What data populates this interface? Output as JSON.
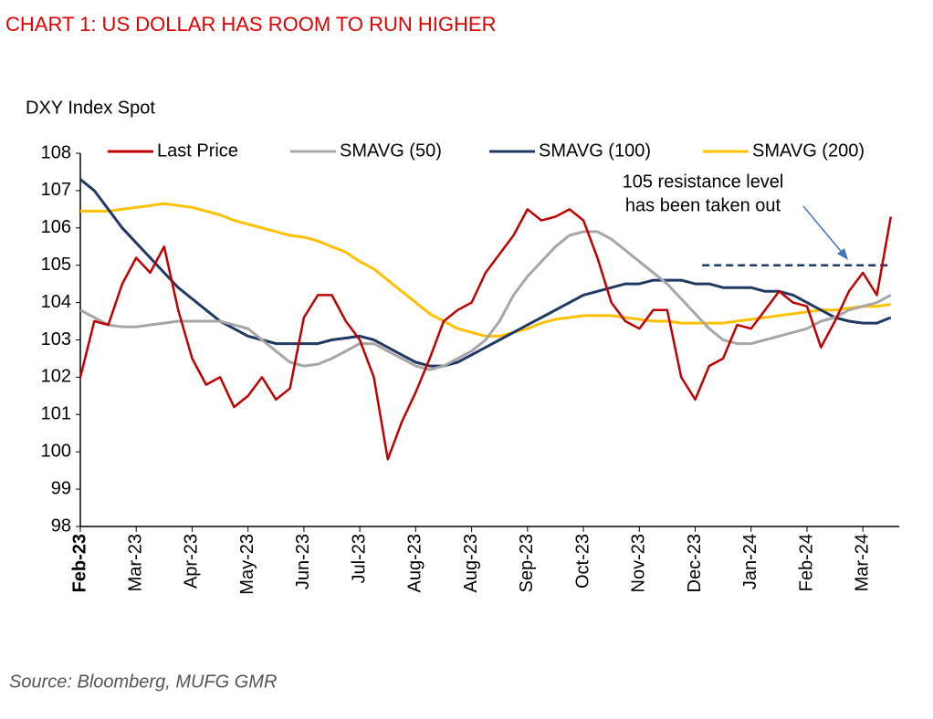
{
  "chart_data": {
    "type": "line",
    "title": "CHART 1: US DOLLAR HAS ROOM TO RUN HIGHER",
    "y_label": "DXY Index Spot",
    "source": "Source: Bloomberg, MUFG GMR",
    "annotation": [
      "105 resistance level",
      "has been taken out"
    ],
    "resistance_line": {
      "y": 105,
      "x": [
        44.5,
        58
      ],
      "color": "#1f3864"
    },
    "xlim": [
      0,
      58.6
    ],
    "xticks": [
      {
        "value": 0,
        "label": "Feb-23"
      },
      {
        "value": 4,
        "label": "Mar-23"
      },
      {
        "value": 8,
        "label": "Apr-23"
      },
      {
        "value": 12,
        "label": "May-23"
      },
      {
        "value": 16,
        "label": "Jun-23"
      },
      {
        "value": 20,
        "label": "Jul-23"
      },
      {
        "value": 24,
        "label": "Aug-23"
      },
      {
        "value": 28,
        "label": "Aug-23"
      },
      {
        "value": 32,
        "label": "Sep-23"
      },
      {
        "value": 36,
        "label": "Oct-23"
      },
      {
        "value": 40,
        "label": "Nov-23"
      },
      {
        "value": 44,
        "label": "Dec-23"
      },
      {
        "value": 48,
        "label": "Jan-24"
      },
      {
        "value": 52,
        "label": "Feb-24"
      },
      {
        "value": 56,
        "label": "Mar-24"
      }
    ],
    "ylim": [
      98,
      108
    ],
    "yticks": [
      98,
      99,
      100,
      101,
      102,
      103,
      104,
      105,
      106,
      107,
      108
    ],
    "series": [
      {
        "name": "Last Price",
        "color": "#c00000",
        "values": [
          102.0,
          103.5,
          103.4,
          104.5,
          105.2,
          104.8,
          105.5,
          103.8,
          102.5,
          101.8,
          102.0,
          101.2,
          101.5,
          102.0,
          101.4,
          101.7,
          103.6,
          104.2,
          104.2,
          103.5,
          103.0,
          102.0,
          99.8,
          100.8,
          101.6,
          102.5,
          103.5,
          103.8,
          104.0,
          104.8,
          105.3,
          105.8,
          106.5,
          106.2,
          106.3,
          106.5,
          106.2,
          105.2,
          104.0,
          103.5,
          103.3,
          103.8,
          103.8,
          102.0,
          101.4,
          102.3,
          102.5,
          103.4,
          103.3,
          103.8,
          104.3,
          104.0,
          103.9,
          102.8,
          103.5,
          104.3,
          104.8,
          104.2,
          106.3
        ]
      },
      {
        "name": "SMAVG (50)",
        "color": "#a6a6a6",
        "values": [
          103.8,
          103.6,
          103.4,
          103.35,
          103.35,
          103.4,
          103.45,
          103.5,
          103.5,
          103.5,
          103.5,
          103.4,
          103.3,
          103.0,
          102.7,
          102.4,
          102.3,
          102.35,
          102.5,
          102.7,
          102.9,
          102.9,
          102.7,
          102.5,
          102.3,
          102.2,
          102.3,
          102.5,
          102.7,
          103.0,
          103.5,
          104.2,
          104.7,
          105.1,
          105.5,
          105.8,
          105.9,
          105.9,
          105.7,
          105.4,
          105.1,
          104.8,
          104.5,
          104.1,
          103.7,
          103.3,
          103.0,
          102.9,
          102.9,
          103.0,
          103.1,
          103.2,
          103.3,
          103.5,
          103.6,
          103.8,
          103.9,
          104.0,
          104.2
        ]
      },
      {
        "name": "SMAVG (100)",
        "color": "#1f3864",
        "values": [
          107.3,
          107.0,
          106.5,
          106.0,
          105.6,
          105.2,
          104.8,
          104.4,
          104.1,
          103.8,
          103.5,
          103.3,
          103.1,
          103.0,
          102.9,
          102.9,
          102.9,
          102.9,
          103.0,
          103.05,
          103.1,
          103.0,
          102.8,
          102.6,
          102.4,
          102.3,
          102.3,
          102.4,
          102.6,
          102.8,
          103.0,
          103.2,
          103.4,
          103.6,
          103.8,
          104.0,
          104.2,
          104.3,
          104.4,
          104.5,
          104.5,
          104.6,
          104.6,
          104.6,
          104.5,
          104.5,
          104.4,
          104.4,
          104.4,
          104.3,
          104.3,
          104.2,
          104.0,
          103.8,
          103.6,
          103.5,
          103.45,
          103.45,
          103.6
        ]
      },
      {
        "name": "SMAVG (200)",
        "color": "#ffc000",
        "values": [
          106.45,
          106.45,
          106.45,
          106.5,
          106.55,
          106.6,
          106.65,
          106.6,
          106.55,
          106.45,
          106.35,
          106.2,
          106.1,
          106.0,
          105.9,
          105.8,
          105.75,
          105.65,
          105.5,
          105.35,
          105.1,
          104.9,
          104.6,
          104.3,
          104.0,
          103.7,
          103.5,
          103.3,
          103.2,
          103.1,
          103.1,
          103.2,
          103.3,
          103.45,
          103.55,
          103.6,
          103.65,
          103.65,
          103.65,
          103.6,
          103.55,
          103.5,
          103.5,
          103.45,
          103.45,
          103.45,
          103.45,
          103.5,
          103.55,
          103.6,
          103.65,
          103.7,
          103.75,
          103.8,
          103.8,
          103.85,
          103.9,
          103.9,
          103.95
        ]
      }
    ]
  }
}
